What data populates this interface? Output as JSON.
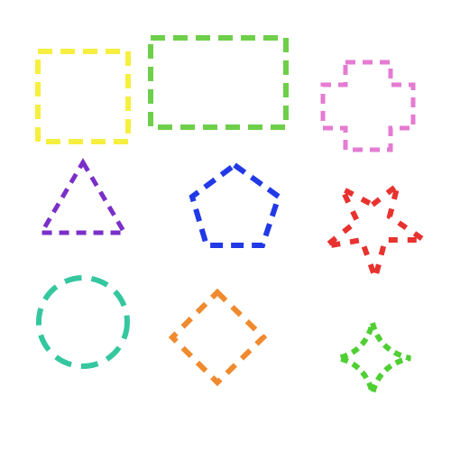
{
  "shapes": [
    {
      "name": "dashed-square-shape",
      "kind": "square",
      "color": "#f7ef3f"
    },
    {
      "name": "dashed-rectangle-shape",
      "kind": "rectangle",
      "color": "#6ecf4a"
    },
    {
      "name": "dashed-plus-cross-shape",
      "kind": "plus-cross",
      "color": "#e57bd3"
    },
    {
      "name": "dashed-triangle-shape",
      "kind": "triangle",
      "color": "#7b2fc9"
    },
    {
      "name": "dashed-pentagon-shape",
      "kind": "pentagon",
      "color": "#2139e6"
    },
    {
      "name": "dashed-star-shape",
      "kind": "star",
      "color": "#e8322f"
    },
    {
      "name": "dashed-circle-shape",
      "kind": "circle",
      "color": "#35c7a0"
    },
    {
      "name": "dashed-diamond-shape",
      "kind": "diamond",
      "color": "#f08a2e"
    },
    {
      "name": "dashed-four-point-star-shape",
      "kind": "four-point-star",
      "color": "#4fcf33"
    }
  ]
}
